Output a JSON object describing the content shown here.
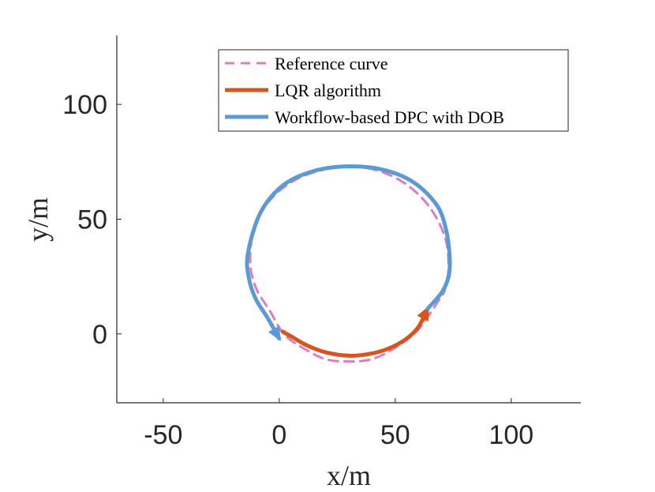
{
  "chart_data": {
    "type": "line",
    "xlabel": "x/m",
    "ylabel": "y/m",
    "xlim": [
      -70,
      130
    ],
    "ylim": [
      -30,
      130
    ],
    "xticks": [
      -50,
      0,
      50,
      100
    ],
    "yticks": [
      0,
      50,
      100
    ],
    "xtick_labels": [
      "-50",
      "0",
      "50",
      "100"
    ],
    "ytick_labels": [
      "0",
      "50",
      "100"
    ],
    "legend_position": "top-right",
    "series": [
      {
        "name": "Reference curve",
        "color": "#e07bbd",
        "style": "dashed",
        "x": [
          69.0,
          60.0,
          50.0,
          40.0,
          30.0,
          20.0,
          10.0,
          2.0,
          -4.0,
          -10.0,
          -12.5,
          -11.0,
          -5.0,
          5.0,
          17.0,
          30.0,
          43.0,
          55.0,
          65.0,
          71.5,
          73.0,
          72.0,
          71.0,
          69.0
        ],
        "y": [
          15.0,
          2.0,
          -6.0,
          -11.0,
          -12.0,
          -11.0,
          -6.0,
          0.0,
          10.0,
          20.0,
          31.0,
          45.0,
          57.0,
          66.0,
          71.0,
          73.0,
          71.0,
          65.0,
          55.0,
          42.0,
          30.0,
          22.0,
          18.0,
          15.0
        ]
      },
      {
        "name": "LQR algorithm",
        "color": "#d9531e",
        "style": "solid",
        "x": [
          1.5,
          5.0,
          12.0,
          20.0,
          30.0,
          40.0,
          48.0,
          55.0,
          60.0,
          64.0
        ],
        "y": [
          1.0,
          -1.0,
          -5.0,
          -8.0,
          -9.5,
          -8.5,
          -6.0,
          -2.0,
          3.0,
          11.0
        ]
      },
      {
        "name": "Workflow-based DPC with DOB",
        "color": "#5b9bd5",
        "style": "solid",
        "x": [
          64.0,
          70.0,
          73.0,
          73.5,
          72.0,
          68.0,
          58.0,
          45.0,
          30.0,
          15.0,
          2.0,
          -8.0,
          -13.5,
          -13.0,
          -10.0,
          -5.0,
          0.0
        ],
        "y": [
          11.0,
          18.0,
          25.0,
          33.0,
          45.0,
          56.0,
          66.0,
          71.5,
          73.0,
          71.0,
          65.0,
          53.0,
          35.0,
          24.0,
          15.0,
          7.0,
          -2.0
        ]
      }
    ]
  }
}
